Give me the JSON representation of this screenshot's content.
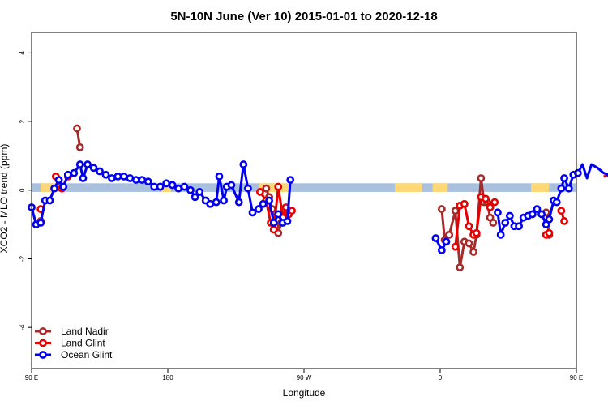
{
  "chart_data": {
    "type": "line",
    "title": "5N-10N June (Ver 10)   2015-01-01 to 2020-12-18",
    "xlabel": "Longitude",
    "ylabel": "XCO2 - MLO trend (ppm)",
    "xlim": [
      90,
      450
    ],
    "ylim": [
      -5.2,
      4.6
    ],
    "x_ticks": [
      {
        "v": 90,
        "label": "90 E"
      },
      {
        "v": 180,
        "label": "180"
      },
      {
        "v": 270,
        "label": "90 W"
      },
      {
        "v": 360,
        "label": "0"
      },
      {
        "v": 450,
        "label": "90 E"
      },
      {
        "v": 540,
        "label": "180"
      }
    ],
    "y_ticks": [
      -4,
      -2,
      0,
      2,
      4
    ],
    "legend_position": "bottom-left",
    "band": {
      "y_low": -0.05,
      "y_high": 0.2,
      "color": "#a9c0de",
      "highlight_color": "#fdd874",
      "highlight_ranges": [
        [
          96,
          107
        ],
        [
          176,
          182
        ],
        [
          240,
          260
        ],
        [
          330,
          348
        ],
        [
          355,
          365
        ],
        [
          420,
          432
        ],
        [
          485,
          490
        ]
      ]
    },
    "series": [
      {
        "name": "Land Nadir",
        "color": "#a52a2a",
        "segments": [
          [
            [
              96,
              -0.9
            ]
          ],
          [
            [
              120,
              1.8
            ],
            [
              122,
              1.25
            ]
          ],
          [
            [
              245,
              0.05
            ],
            [
              247,
              -0.2
            ],
            [
              249,
              -0.55
            ],
            [
              251,
              -1.05
            ],
            [
              253,
              -1.25
            ],
            [
              255,
              -0.95
            ]
          ],
          [
            [
              361,
              -0.55
            ],
            [
              363,
              -1.45
            ],
            [
              366,
              -1.3
            ],
            [
              370,
              -0.6
            ],
            [
              373,
              -2.25
            ],
            [
              376,
              -1.5
            ],
            [
              379,
              -1.55
            ],
            [
              382,
              -1.8
            ],
            [
              384,
              -1.3
            ],
            [
              387,
              0.35
            ],
            [
              389,
              -0.35
            ],
            [
              391,
              -0.35
            ],
            [
              393,
              -0.8
            ],
            [
              395,
              -0.95
            ]
          ],
          [
            [
              430,
              -0.65
            ],
            [
              432,
              -1.3
            ]
          ],
          [
            [
              480,
              1.8
            ],
            [
              482,
              1.25
            ]
          ]
        ]
      },
      {
        "name": "Land Glint",
        "color": "#e60000",
        "segments": [
          [
            [
              96,
              -0.55
            ]
          ],
          [
            [
              106,
              0.4
            ],
            [
              110,
              0.05
            ],
            [
              114,
              0.4
            ]
          ],
          [
            [
              241,
              -0.05
            ],
            [
              245,
              -0.3
            ],
            [
              248,
              -0.95
            ],
            [
              250,
              -1.15
            ],
            [
              253,
              0.1
            ],
            [
              256,
              -0.8
            ],
            [
              258,
              -0.5
            ],
            [
              260,
              -0.7
            ],
            [
              262,
              -0.6
            ]
          ],
          [
            [
              370,
              -1.65
            ],
            [
              373,
              -0.45
            ],
            [
              376,
              -0.4
            ],
            [
              379,
              -1.05
            ],
            [
              382,
              -1.3
            ],
            [
              384,
              -1.25
            ],
            [
              387,
              -0.2
            ],
            [
              390,
              -0.25
            ],
            [
              393,
              -0.5
            ],
            [
              396,
              -0.35
            ]
          ],
          [
            [
              430,
              -1.3
            ],
            [
              432,
              -1.25
            ]
          ],
          [
            [
              440,
              -0.6
            ],
            [
              442,
              -0.9
            ]
          ],
          [
            [
              468,
              0.4
            ],
            [
              473,
              0.45
            ]
          ]
        ]
      },
      {
        "name": "Ocean Glint",
        "color": "#0000ee",
        "segments": [
          [
            [
              90,
              -0.5
            ],
            [
              93,
              -1.0
            ],
            [
              96,
              -0.95
            ],
            [
              99,
              -0.3
            ],
            [
              102,
              -0.3
            ],
            [
              105,
              0.05
            ],
            [
              108,
              0.3
            ],
            [
              111,
              0.1
            ],
            [
              114,
              0.45
            ],
            [
              118,
              0.5
            ],
            [
              122,
              0.75
            ],
            [
              124,
              0.35
            ],
            [
              127,
              0.75
            ],
            [
              131,
              0.65
            ],
            [
              135,
              0.55
            ],
            [
              139,
              0.45
            ],
            [
              143,
              0.35
            ],
            [
              147,
              0.4
            ],
            [
              151,
              0.4
            ],
            [
              155,
              0.35
            ],
            [
              159,
              0.3
            ],
            [
              163,
              0.3
            ],
            [
              167,
              0.25
            ],
            [
              171,
              0.1
            ],
            [
              175,
              0.1
            ],
            [
              179,
              0.2
            ],
            [
              183,
              0.15
            ],
            [
              187,
              0.05
            ],
            [
              191,
              0.1
            ],
            [
              195,
              0.0
            ],
            [
              198,
              -0.2
            ],
            [
              201,
              -0.05
            ],
            [
              205,
              -0.3
            ],
            [
              208,
              -0.4
            ],
            [
              212,
              -0.35
            ],
            [
              214,
              0.4
            ],
            [
              217,
              -0.3
            ],
            [
              219,
              0.1
            ],
            [
              222,
              0.15
            ],
            [
              227,
              -0.35
            ],
            [
              230,
              0.75
            ],
            [
              233,
              0.05
            ],
            [
              236,
              -0.65
            ],
            [
              240,
              -0.55
            ],
            [
              243,
              -0.4
            ],
            [
              247,
              -0.3
            ],
            [
              250,
              -0.95
            ],
            [
              253,
              -0.7
            ],
            [
              256,
              -0.95
            ],
            [
              259,
              -0.9
            ],
            [
              261,
              0.3
            ]
          ],
          [
            [
              357,
              -1.4
            ],
            [
              361,
              -1.75
            ],
            [
              364,
              -1.5
            ]
          ],
          [
            [
              398,
              -0.65
            ],
            [
              400,
              -1.3
            ],
            [
              403,
              -0.95
            ],
            [
              406,
              -0.75
            ],
            [
              409,
              -1.05
            ],
            [
              412,
              -1.05
            ],
            [
              415,
              -0.8
            ],
            [
              418,
              -0.75
            ],
            [
              421,
              -0.7
            ],
            [
              424,
              -0.55
            ],
            [
              427,
              -0.7
            ],
            [
              430,
              -1.0
            ],
            [
              432,
              -0.85
            ],
            [
              435,
              -0.3
            ],
            [
              437,
              -0.35
            ],
            [
              440,
              0.05
            ],
            [
              442,
              0.35
            ],
            [
              445,
              0.05
            ],
            [
              448,
              0.45
            ],
            [
              451,
              0.5
            ],
            [
              454,
              0.75
            ],
            [
              457,
              0.35
            ],
            [
              460,
              0.75
            ],
            [
              464,
              0.65
            ],
            [
              468,
              0.5
            ],
            [
              471,
              0.45
            ],
            [
              475,
              0.35
            ],
            [
              479,
              0.4
            ]
          ]
        ]
      }
    ]
  }
}
